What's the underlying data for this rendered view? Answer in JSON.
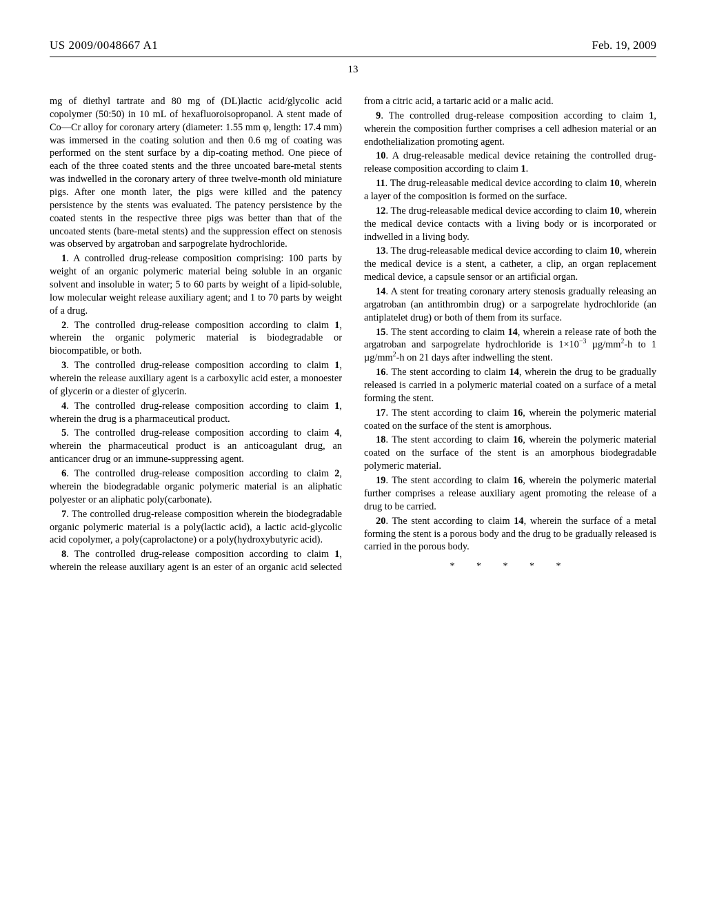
{
  "header": {
    "publication_number": "US 2009/0048667 A1",
    "date": "Feb. 19, 2009"
  },
  "page_number": "13",
  "colors": {
    "text": "#000000",
    "background": "#ffffff",
    "rule": "#000000"
  },
  "typography": {
    "body_family": "Times New Roman, serif",
    "body_size_pt": 10.5,
    "header_size_pt": 12,
    "line_height": 1.32
  },
  "intro_paragraph": "mg of diethyl tartrate and 80 mg of (DL)lactic acid/glycolic acid copolymer (50:50) in 10 mL of hexafluoroisopropanol. A stent made of Co—Cr alloy for coronary artery (diameter: 1.55 mm φ, length: 17.4 mm) was immersed in the coating solution and then 0.6 mg of coating was performed on the stent surface by a dip-coating method. One piece of each of the three coated stents and the three uncoated bare-metal stents was indwelled in the coronary artery of three twelve-month old miniature pigs. After one month later, the pigs were killed and the patency persistence by the stents was evaluated. The patency persistence by the coated stents in the respective three pigs was better than that of the uncoated stents (bare-metal stents) and the suppression effect on stenosis was observed by argatroban and sarpogrelate hydrochloride.",
  "claims": [
    {
      "n": "1",
      "text": "A controlled drug-release composition comprising: 100 parts by weight of an organic polymeric material being soluble in an organic solvent and insoluble in water; 5 to 60 parts by weight of a lipid-soluble, low molecular weight release auxiliary agent; and 1 to 70 parts by weight of a drug."
    },
    {
      "n": "2",
      "text": "The controlled drug-release composition according to claim 1, wherein the organic polymeric material is biodegradable or biocompatible, or both."
    },
    {
      "n": "3",
      "text": "The controlled drug-release composition according to claim 1, wherein the release auxiliary agent is a carboxylic acid ester, a monoester of glycerin or a diester of glycerin."
    },
    {
      "n": "4",
      "text": "The controlled drug-release composition according to claim 1, wherein the drug is a pharmaceutical product."
    },
    {
      "n": "5",
      "text": "The controlled drug-release composition according to claim 4, wherein the pharmaceutical product is an anticoagulant drug, an anticancer drug or an immune-suppressing agent."
    },
    {
      "n": "6",
      "text": "The controlled drug-release composition according to claim 2, wherein the biodegradable organic polymeric material is an aliphatic polyester or an aliphatic poly(carbonate)."
    },
    {
      "n": "7",
      "text": "The controlled drug-release composition wherein the biodegradable organic polymeric material is a poly(lactic acid), a lactic acid-glycolic acid copolymer, a poly(caprolactone) or a poly(hydroxybutyric acid)."
    },
    {
      "n": "8",
      "text": "The controlled drug-release composition according to claim 1, wherein the release auxiliary agent is an ester of an organic acid selected from a citric acid, a tartaric acid or a malic acid."
    },
    {
      "n": "9",
      "text": "The controlled drug-release composition according to claim 1, wherein the composition further comprises a cell adhesion material or an endothelialization promoting agent."
    },
    {
      "n": "10",
      "text": "A drug-releasable medical device retaining the controlled drug-release composition according to claim 1."
    },
    {
      "n": "11",
      "text": "The drug-releasable medical device according to claim 10, wherein a layer of the composition is formed on the surface."
    },
    {
      "n": "12",
      "text": "The drug-releasable medical device according to claim 10, wherein the medical device contacts with a living body or is incorporated or indwelled in a living body."
    },
    {
      "n": "13",
      "text": "The drug-releasable medical device according to claim 10, wherein the medical device is a stent, a catheter, a clip, an organ replacement medical device, a capsule sensor or an artificial organ."
    },
    {
      "n": "14",
      "text": "A stent for treating coronary artery stenosis gradually releasing an argatroban (an antithrombin drug) or a sarpogrelate hydrochloride (an antiplatelet drug) or both of them from its surface."
    },
    {
      "n": "15",
      "text": "The stent according to claim 14, wherein a release rate of both the argatroban and sarpogrelate hydrochloride is 1×10⁻³ µg/mm²-h to 1 µg/mm²-h on 21 days after indwelling the stent."
    },
    {
      "n": "16",
      "text": "The stent according to claim 14, wherein the drug to be gradually released is carried in a polymeric material coated on a surface of a metal forming the stent."
    },
    {
      "n": "17",
      "text": "The stent according to claim 16, wherein the polymeric material coated on the surface of the stent is amorphous."
    },
    {
      "n": "18",
      "text": "The stent according to claim 16, wherein the polymeric material coated on the surface of the stent is an amorphous biodegradable polymeric material."
    },
    {
      "n": "19",
      "text": "The stent according to claim 16, wherein the polymeric material further comprises a release auxiliary agent promoting the release of a drug to be carried."
    },
    {
      "n": "20",
      "text": "The stent according to claim 14, wherein the surface of a metal forming the stent is a porous body and the drug to be gradually released is carried in the porous body."
    }
  ],
  "end_mark": "* * * * *"
}
